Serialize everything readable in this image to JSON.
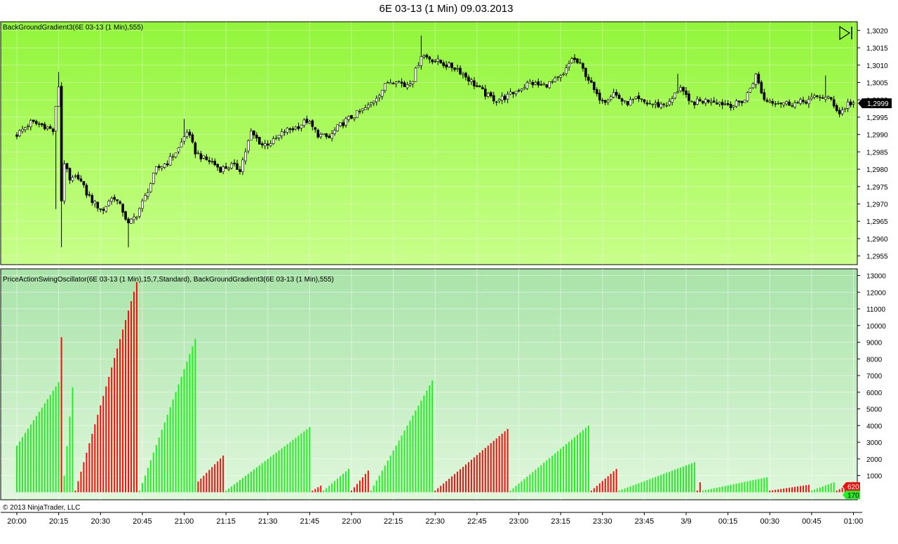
{
  "window": {
    "title": "6E 03-13 (1 Min)  09.03.2013",
    "copyright": "© 2013 NinjaTrader, LLC",
    "play_icon": "play-to-end-icon"
  },
  "colors": {
    "price_bg_top": "#92f53a",
    "price_bg_bottom": "#c8ff8a",
    "osc_bg_top": "#a9e3a9",
    "osc_bg_bottom": "#e0f7dc",
    "up_bar": "#22ee22",
    "down_bar": "#ee1111",
    "candle_up": "#ffffff",
    "candle_down": "#000000"
  },
  "chart_data": [
    {
      "type": "candlestick",
      "label": "BackGroundGradient3(6E 03-13 (1 Min),555)",
      "ylim": [
        1.29525,
        1.30225
      ],
      "y_ticks": [
        "1,3020",
        "1,3015",
        "1,3010",
        "1,3005",
        "1,3000",
        "1,2995",
        "1,2990",
        "1,2985",
        "1,2980",
        "1,2975",
        "1,2970",
        "1,2965",
        "1,2960",
        "1,2955"
      ],
      "y_tick_values": [
        1.302,
        1.3015,
        1.301,
        1.3005,
        1.3,
        1.2995,
        1.299,
        1.2985,
        1.298,
        1.2975,
        1.297,
        1.2965,
        1.296,
        1.2955
      ],
      "last_price_label": "1,2999",
      "last_price": 1.2999,
      "grid": true,
      "x_ticks": [
        "20:00",
        "20:15",
        "20:30",
        "20:45",
        "21:00",
        "21:15",
        "21:30",
        "21:45",
        "22:00",
        "22:15",
        "22:30",
        "22:45",
        "23:00",
        "23:15",
        "23:30",
        "23:45",
        "3/9",
        "00:15",
        "00:30",
        "00:45",
        "01:00"
      ],
      "x_minutes": [
        0,
        15,
        30,
        45,
        60,
        75,
        90,
        105,
        120,
        135,
        150,
        165,
        180,
        195,
        210,
        225,
        240,
        255,
        270,
        285,
        300
      ],
      "closes": [
        [
          0,
          1.299
        ],
        [
          5,
          1.29935
        ],
        [
          10,
          1.29925
        ],
        [
          13,
          1.2991
        ],
        [
          15,
          1.3004
        ],
        [
          16,
          1.2971
        ],
        [
          17,
          1.2982
        ],
        [
          19,
          1.29765
        ],
        [
          22,
          1.2978
        ],
        [
          25,
          1.2973
        ],
        [
          28,
          1.297
        ],
        [
          31,
          1.2968
        ],
        [
          33,
          1.2971
        ],
        [
          35,
          1.2972
        ],
        [
          38,
          1.2968
        ],
        [
          40,
          1.2964
        ],
        [
          43,
          1.2967
        ],
        [
          46,
          1.2972
        ],
        [
          50,
          1.298
        ],
        [
          54,
          1.2982
        ],
        [
          58,
          1.2986
        ],
        [
          61,
          1.2991
        ],
        [
          64,
          1.2985
        ],
        [
          67,
          1.2983
        ],
        [
          70,
          1.2982
        ],
        [
          73,
          1.298
        ],
        [
          77,
          1.2981
        ],
        [
          80,
          1.298
        ],
        [
          84,
          1.29905
        ],
        [
          88,
          1.2987
        ],
        [
          92,
          1.2988
        ],
        [
          96,
          1.2991
        ],
        [
          100,
          1.2992
        ],
        [
          104,
          1.2994
        ],
        [
          108,
          1.299
        ],
        [
          112,
          1.2989
        ],
        [
          115,
          1.2992
        ],
        [
          118,
          1.2994
        ],
        [
          122,
          1.2996
        ],
        [
          126,
          1.2998
        ],
        [
          130,
          1.3002
        ],
        [
          133,
          1.3005
        ],
        [
          136,
          1.3006
        ],
        [
          139,
          1.3004
        ],
        [
          142,
          1.3006
        ],
        [
          145,
          1.3013
        ],
        [
          148,
          1.3012
        ],
        [
          151,
          1.3011
        ],
        [
          154,
          1.301
        ],
        [
          158,
          1.3009
        ],
        [
          162,
          1.3006
        ],
        [
          166,
          1.3003
        ],
        [
          169,
          1.3001
        ],
        [
          172,
          1.3
        ],
        [
          176,
          1.3001
        ],
        [
          180,
          1.3003
        ],
        [
          184,
          1.3005
        ],
        [
          188,
          1.3004
        ],
        [
          192,
          1.3005
        ],
        [
          196,
          1.3007
        ],
        [
          199,
          1.3012
        ],
        [
          202,
          1.301
        ],
        [
          205,
          1.3006
        ],
        [
          208,
          1.3001
        ],
        [
          211,
          1.3
        ],
        [
          214,
          1.3002
        ],
        [
          218,
          1.2999
        ],
        [
          222,
          1.3
        ],
        [
          226,
          1.2999
        ],
        [
          230,
          1.29985
        ],
        [
          234,
          1.2999
        ],
        [
          238,
          1.3004
        ],
        [
          241,
          1.2999
        ],
        [
          245,
          1.29995
        ],
        [
          249,
          1.3
        ],
        [
          253,
          1.2999
        ],
        [
          257,
          1.29985
        ],
        [
          261,
          1.3
        ],
        [
          265,
          1.3007
        ],
        [
          268,
          1.3
        ],
        [
          272,
          1.29995
        ],
        [
          276,
          1.2999
        ],
        [
          280,
          1.2999
        ],
        [
          284,
          1.3
        ],
        [
          288,
          1.3001
        ],
        [
          292,
          1.3
        ],
        [
          295,
          1.2996
        ],
        [
          298,
          1.2999
        ],
        [
          300,
          1.2999
        ]
      ],
      "spikes": [
        [
          14,
          1.29685
        ],
        [
          15,
          1.3008
        ],
        [
          16,
          1.29575
        ],
        [
          40,
          1.29575
        ],
        [
          60,
          1.29945
        ],
        [
          145,
          1.30185
        ],
        [
          237,
          1.30075
        ],
        [
          290,
          1.3007
        ]
      ]
    },
    {
      "type": "bar",
      "label": "PriceActionSwingOscillator(6E 03-13 (1 Min),15,7,Standard), BackGroundGradient3(6E 03-13 (1 Min),555)",
      "ylim": [
        -450,
        13400
      ],
      "y_ticks": [
        "13000",
        "12000",
        "11000",
        "10000",
        "9000",
        "8000",
        "7000",
        "6000",
        "5000",
        "4000",
        "3000",
        "2000",
        "1000"
      ],
      "y_tick_values": [
        13000,
        12000,
        11000,
        10000,
        9000,
        8000,
        7000,
        6000,
        5000,
        4000,
        3000,
        2000,
        1000
      ],
      "last_value_labels": [
        "620",
        "170"
      ],
      "last_values": [
        620,
        170
      ],
      "grid": true,
      "segments": [
        {
          "color": "up",
          "start": 0,
          "end": 15,
          "from": 2800,
          "to": 6600
        },
        {
          "color": "down",
          "start": 16,
          "end": 16,
          "from": 9300,
          "to": 9300
        },
        {
          "color": "up",
          "start": 17,
          "end": 20,
          "from": 1000,
          "to": 6300
        },
        {
          "color": "down",
          "start": 21,
          "end": 43,
          "from": 100,
          "to": 12600
        },
        {
          "color": "up",
          "start": 44,
          "end": 64,
          "from": 100,
          "to": 9200
        },
        {
          "color": "down",
          "start": 65,
          "end": 74,
          "from": 650,
          "to": 2200
        },
        {
          "color": "up",
          "start": 75,
          "end": 105,
          "from": 100,
          "to": 3900
        },
        {
          "color": "down",
          "start": 106,
          "end": 109,
          "from": 100,
          "to": 400
        },
        {
          "color": "up",
          "start": 110,
          "end": 119,
          "from": 100,
          "to": 1400
        },
        {
          "color": "down",
          "start": 120,
          "end": 126,
          "from": 100,
          "to": 1300
        },
        {
          "color": "up",
          "start": 127,
          "end": 149,
          "from": 100,
          "to": 6700
        },
        {
          "color": "down",
          "start": 150,
          "end": 176,
          "from": 100,
          "to": 3800
        },
        {
          "color": "up",
          "start": 177,
          "end": 205,
          "from": 100,
          "to": 4000
        },
        {
          "color": "down",
          "start": 206,
          "end": 215,
          "from": 100,
          "to": 1400
        },
        {
          "color": "up",
          "start": 216,
          "end": 243,
          "from": 100,
          "to": 1800
        },
        {
          "color": "down",
          "start": 244,
          "end": 245,
          "from": 100,
          "to": 600
        },
        {
          "color": "up",
          "start": 246,
          "end": 269,
          "from": 100,
          "to": 900
        },
        {
          "color": "down",
          "start": 270,
          "end": 284,
          "from": 100,
          "to": 450
        },
        {
          "color": "up",
          "start": 285,
          "end": 293,
          "from": 100,
          "to": 600
        },
        {
          "color": "down",
          "start": 294,
          "end": 300,
          "from": 100,
          "to": 620
        }
      ]
    }
  ]
}
